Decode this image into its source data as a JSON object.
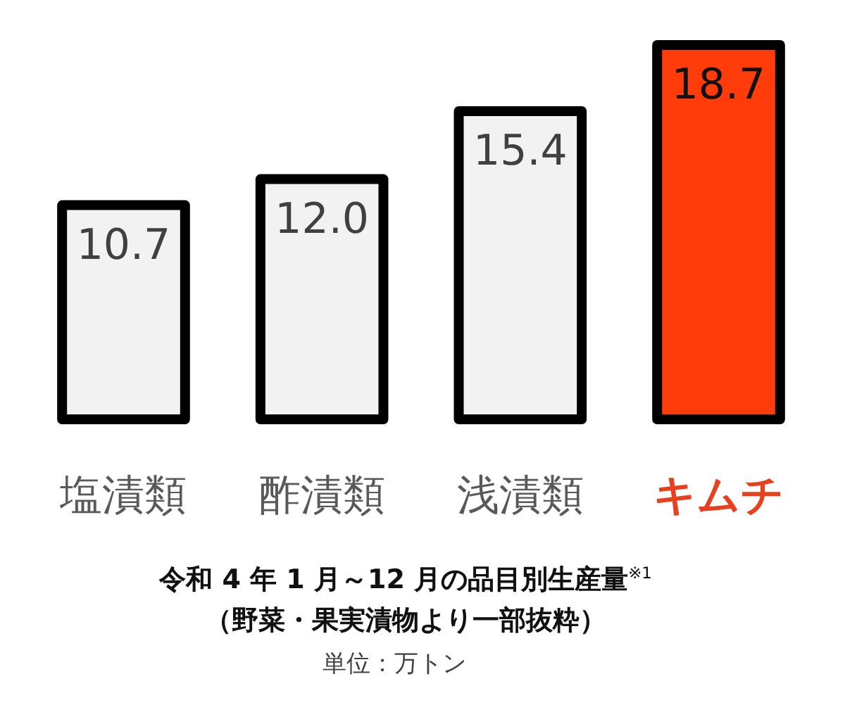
{
  "chart_data": {
    "type": "bar",
    "title": "令和 4 年 1 月～12 月の品目別生産量$^{※1}$",
    "subtitle": "（野菜・果実漬物より一部抜粋）",
    "annotations": [
      "単位：万トン"
    ],
    "categories": [
      "塩漬類",
      "酢漬類",
      "浅漬類",
      "キムチ"
    ],
    "values": [
      10.7,
      12.0,
      15.4,
      18.7
    ],
    "value_labels": [
      "10.7",
      "12.0",
      "15.4",
      "18.7"
    ],
    "colors": [
      "#f2f2f2",
      "#f2f2f2",
      "#f2f2f2",
      "#ff3c0a"
    ]
  }
}
